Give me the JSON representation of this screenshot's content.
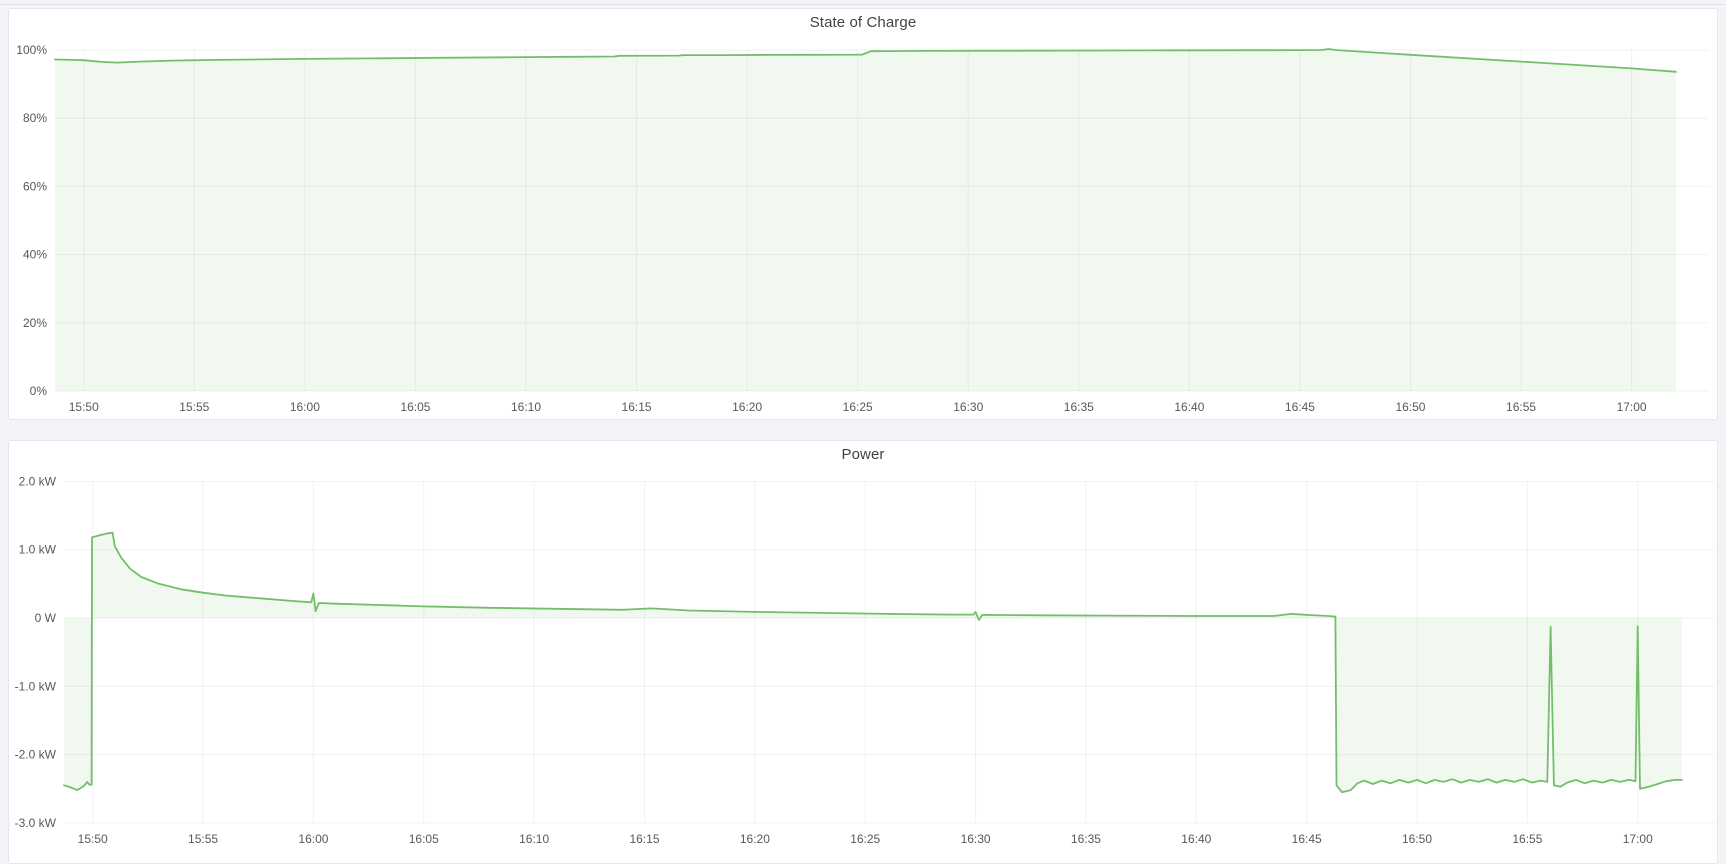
{
  "page": {
    "background": "#f3f4f7",
    "panel_background": "#ffffff",
    "panel_border": "#e2e5ea"
  },
  "panels": [
    {
      "title": "State of Charge"
    },
    {
      "title": "Power"
    }
  ],
  "chart_data": [
    {
      "type": "area",
      "title": "State of Charge",
      "xlabel": "",
      "ylabel": "",
      "legend": "none",
      "grid": true,
      "x_unit": "minutes_after_15:00",
      "x_range": [
        48.7,
        123.5
      ],
      "x_ticks": [
        {
          "t": 50,
          "label": "15:50"
        },
        {
          "t": 55,
          "label": "15:55"
        },
        {
          "t": 60,
          "label": "16:00"
        },
        {
          "t": 65,
          "label": "16:05"
        },
        {
          "t": 70,
          "label": "16:10"
        },
        {
          "t": 75,
          "label": "16:15"
        },
        {
          "t": 80,
          "label": "16:20"
        },
        {
          "t": 85,
          "label": "16:25"
        },
        {
          "t": 90,
          "label": "16:30"
        },
        {
          "t": 95,
          "label": "16:35"
        },
        {
          "t": 100,
          "label": "16:40"
        },
        {
          "t": 105,
          "label": "16:45"
        },
        {
          "t": 110,
          "label": "16:50"
        },
        {
          "t": 115,
          "label": "16:55"
        },
        {
          "t": 120,
          "label": "17:00"
        }
      ],
      "ylim": [
        0,
        100
      ],
      "y_ticks": [
        {
          "v": 0,
          "label": "0%"
        },
        {
          "v": 20,
          "label": "20%"
        },
        {
          "v": 40,
          "label": "40%"
        },
        {
          "v": 60,
          "label": "60%"
        },
        {
          "v": 80,
          "label": "80%"
        },
        {
          "v": 100,
          "label": "100%"
        }
      ],
      "series": [
        {
          "name": "State of Charge",
          "color": "#73bf69",
          "fill_opacity": 0.1,
          "points": [
            [
              48.7,
              97.2
            ],
            [
              49.5,
              97.1
            ],
            [
              50.0,
              97.0
            ],
            [
              50.8,
              96.5
            ],
            [
              51.5,
              96.3
            ],
            [
              52.5,
              96.6
            ],
            [
              54.0,
              96.9
            ],
            [
              56.0,
              97.1
            ],
            [
              58.0,
              97.25
            ],
            [
              60.0,
              97.4
            ],
            [
              63.0,
              97.55
            ],
            [
              66.0,
              97.7
            ],
            [
              69.0,
              97.85
            ],
            [
              72.0,
              98.0
            ],
            [
              74.0,
              98.1
            ],
            [
              74.2,
              98.3
            ],
            [
              76.9,
              98.35
            ],
            [
              77.1,
              98.5
            ],
            [
              79.0,
              98.5
            ],
            [
              81.0,
              98.55
            ],
            [
              83.0,
              98.6
            ],
            [
              85.2,
              98.65
            ],
            [
              85.6,
              99.65
            ],
            [
              88.0,
              99.75
            ],
            [
              92.0,
              99.8
            ],
            [
              96.0,
              99.85
            ],
            [
              100.0,
              99.9
            ],
            [
              104.0,
              99.95
            ],
            [
              106.0,
              100.0
            ],
            [
              106.3,
              100.3
            ],
            [
              106.6,
              100.0
            ],
            [
              110.0,
              98.6
            ],
            [
              115.0,
              96.6
            ],
            [
              120.0,
              94.6
            ],
            [
              122.0,
              93.6
            ]
          ]
        }
      ]
    },
    {
      "type": "area",
      "title": "Power",
      "xlabel": "",
      "ylabel": "",
      "legend": "none",
      "grid": true,
      "x_unit": "minutes_after_15:00",
      "x_range": [
        48.7,
        123.5
      ],
      "x_ticks": [
        {
          "t": 50,
          "label": "15:50"
        },
        {
          "t": 55,
          "label": "15:55"
        },
        {
          "t": 60,
          "label": "16:00"
        },
        {
          "t": 65,
          "label": "16:05"
        },
        {
          "t": 70,
          "label": "16:10"
        },
        {
          "t": 75,
          "label": "16:15"
        },
        {
          "t": 80,
          "label": "16:20"
        },
        {
          "t": 85,
          "label": "16:25"
        },
        {
          "t": 90,
          "label": "16:30"
        },
        {
          "t": 95,
          "label": "16:35"
        },
        {
          "t": 100,
          "label": "16:40"
        },
        {
          "t": 105,
          "label": "16:45"
        },
        {
          "t": 110,
          "label": "16:50"
        },
        {
          "t": 115,
          "label": "16:55"
        },
        {
          "t": 120,
          "label": "17:00"
        }
      ],
      "ylim": [
        -3,
        2
      ],
      "y_ticks": [
        {
          "v": -3,
          "label": "-3.0 kW"
        },
        {
          "v": -2,
          "label": "-2.0 kW"
        },
        {
          "v": -1,
          "label": "-1.0 kW"
        },
        {
          "v": 0,
          "label": "0 W"
        },
        {
          "v": 1,
          "label": "1.0 kW"
        },
        {
          "v": 2,
          "label": "2.0 kW"
        }
      ],
      "series": [
        {
          "name": "Power",
          "color": "#73bf69",
          "fill_opacity": 0.1,
          "points": [
            [
              48.7,
              -2.45
            ],
            [
              49.0,
              -2.48
            ],
            [
              49.3,
              -2.52
            ],
            [
              49.6,
              -2.46
            ],
            [
              49.75,
              -2.4
            ],
            [
              49.85,
              -2.44
            ],
            [
              49.95,
              -2.44
            ],
            [
              49.97,
              1.18
            ],
            [
              50.3,
              1.21
            ],
            [
              50.7,
              1.24
            ],
            [
              50.9,
              1.25
            ],
            [
              51.0,
              1.05
            ],
            [
              51.3,
              0.88
            ],
            [
              51.7,
              0.72
            ],
            [
              52.2,
              0.6
            ],
            [
              53.0,
              0.5
            ],
            [
              54.0,
              0.42
            ],
            [
              55.0,
              0.37
            ],
            [
              56.0,
              0.33
            ],
            [
              57.5,
              0.29
            ],
            [
              59.0,
              0.25
            ],
            [
              59.9,
              0.23
            ],
            [
              60.0,
              0.36
            ],
            [
              60.1,
              0.1
            ],
            [
              60.25,
              0.22
            ],
            [
              61.0,
              0.21
            ],
            [
              63.0,
              0.19
            ],
            [
              65.0,
              0.17
            ],
            [
              68.0,
              0.15
            ],
            [
              71.0,
              0.135
            ],
            [
              74.0,
              0.12
            ],
            [
              75.3,
              0.14
            ],
            [
              77.0,
              0.11
            ],
            [
              80.0,
              0.09
            ],
            [
              83.0,
              0.075
            ],
            [
              86.0,
              0.06
            ],
            [
              89.0,
              0.05
            ],
            [
              89.9,
              0.05
            ],
            [
              90.0,
              0.09
            ],
            [
              90.15,
              -0.03
            ],
            [
              90.3,
              0.045
            ],
            [
              93.0,
              0.04
            ],
            [
              96.0,
              0.035
            ],
            [
              100.0,
              0.03
            ],
            [
              103.0,
              0.03
            ],
            [
              103.5,
              0.03
            ],
            [
              104.3,
              0.06
            ],
            [
              105.0,
              0.045
            ],
            [
              106.0,
              0.03
            ],
            [
              106.3,
              0.02
            ],
            [
              106.35,
              -2.45
            ],
            [
              106.6,
              -2.55
            ],
            [
              107.0,
              -2.52
            ],
            [
              107.3,
              -2.42
            ],
            [
              107.6,
              -2.38
            ],
            [
              108.0,
              -2.43
            ],
            [
              108.4,
              -2.38
            ],
            [
              108.8,
              -2.42
            ],
            [
              109.2,
              -2.37
            ],
            [
              109.6,
              -2.41
            ],
            [
              110.0,
              -2.37
            ],
            [
              110.4,
              -2.42
            ],
            [
              110.8,
              -2.37
            ],
            [
              111.2,
              -2.4
            ],
            [
              111.6,
              -2.36
            ],
            [
              112.0,
              -2.41
            ],
            [
              112.4,
              -2.37
            ],
            [
              112.8,
              -2.4
            ],
            [
              113.2,
              -2.36
            ],
            [
              113.6,
              -2.41
            ],
            [
              114.0,
              -2.37
            ],
            [
              114.4,
              -2.4
            ],
            [
              114.8,
              -2.36
            ],
            [
              115.2,
              -2.41
            ],
            [
              115.6,
              -2.38
            ],
            [
              115.9,
              -2.4
            ],
            [
              116.05,
              -0.13
            ],
            [
              116.2,
              -2.45
            ],
            [
              116.5,
              -2.47
            ],
            [
              116.8,
              -2.41
            ],
            [
              117.2,
              -2.37
            ],
            [
              117.6,
              -2.42
            ],
            [
              118.0,
              -2.38
            ],
            [
              118.4,
              -2.41
            ],
            [
              118.8,
              -2.37
            ],
            [
              119.2,
              -2.4
            ],
            [
              119.6,
              -2.37
            ],
            [
              119.9,
              -2.39
            ],
            [
              120.0,
              -0.12
            ],
            [
              120.1,
              -2.5
            ],
            [
              120.5,
              -2.47
            ],
            [
              120.9,
              -2.43
            ],
            [
              121.3,
              -2.39
            ],
            [
              121.7,
              -2.37
            ],
            [
              122.0,
              -2.37
            ]
          ]
        }
      ]
    }
  ],
  "style": {
    "line_color": "#73bf69",
    "grid_color": "rgba(0,0,0,0.055)",
    "tick_text_color": "#55585e",
    "title_color": "#3f434a"
  }
}
